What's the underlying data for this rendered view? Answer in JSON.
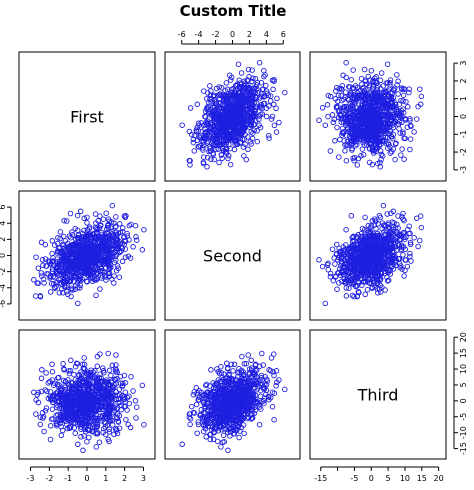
{
  "chart_data": {
    "type": "scatter",
    "subtype": "pairs-matrix",
    "title": "Custom Title",
    "variables": [
      {
        "name": "First",
        "range": [
          -3.4,
          3.4
        ],
        "ticks": [
          -3,
          -2,
          -1,
          0,
          1,
          2,
          3
        ],
        "tick_labels": [
          "-3",
          "-2",
          "-1",
          "0",
          "1",
          "2",
          "3"
        ]
      },
      {
        "name": "Second",
        "range": [
          -7.5,
          7.5
        ],
        "ticks": [
          -6,
          -4,
          -2,
          0,
          2,
          4,
          6
        ],
        "tick_labels": [
          "-6",
          "-4",
          "-2",
          "0",
          "2",
          "4",
          "6"
        ]
      },
      {
        "name": "Third",
        "range": [
          -17,
          21
        ],
        "ticks": [
          -15,
          -10,
          -5,
          0,
          5,
          10,
          15,
          20
        ],
        "tick_labels": [
          "-15",
          "",
          "-5",
          "0",
          "5",
          "10",
          "15",
          "20"
        ],
        "tick_labels_right": [
          "-15",
          "-10",
          "-5",
          "0",
          "5",
          "10",
          "15",
          "20"
        ]
      }
    ],
    "n_points": 900,
    "distribution": {
      "means": [
        0,
        0,
        0
      ],
      "sds": [
        1,
        2,
        5
      ],
      "correlations": {
        "first_second": 0.4,
        "first_third": 0.1,
        "second_third": 0.4
      }
    },
    "point_color": "#1f1fe0",
    "marker": "open-circle",
    "grid": false,
    "legend": "none"
  }
}
